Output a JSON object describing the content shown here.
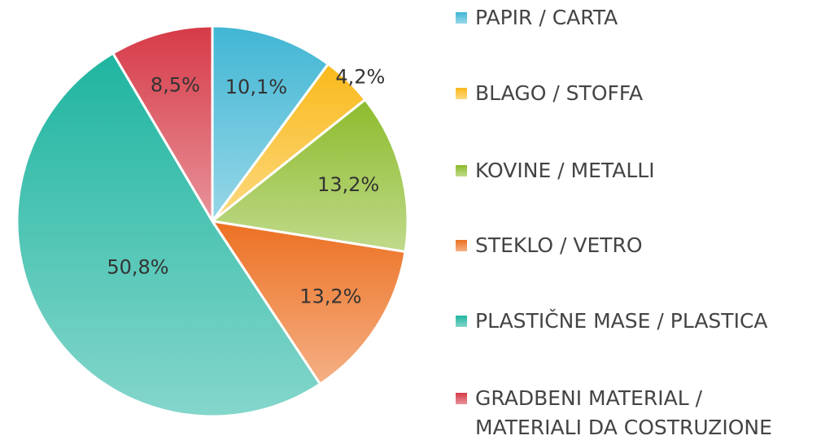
{
  "chart_data": {
    "type": "pie",
    "categories": [
      "PAPIR / CARTA",
      "BLAGO / STOFFA",
      "KOVINE / METALLI",
      "STEKLO / VETRO",
      "PLASTIČNE MASE / PLASTICA",
      "GRADBENI MATERIAL / MATERIALI DA COSTRUZIONE"
    ],
    "values": [
      10.1,
      4.2,
      13.2,
      13.2,
      50.8,
      8.5
    ],
    "value_labels": [
      "10,1%",
      "4,2%",
      "13,2%",
      "13,2%",
      "50,8%",
      "8,5%"
    ],
    "colors": [
      "#41b6d4",
      "#f9b91a",
      "#8dbb2c",
      "#ec7022",
      "#1fb5a0",
      "#d63a47"
    ],
    "legend": "right"
  }
}
